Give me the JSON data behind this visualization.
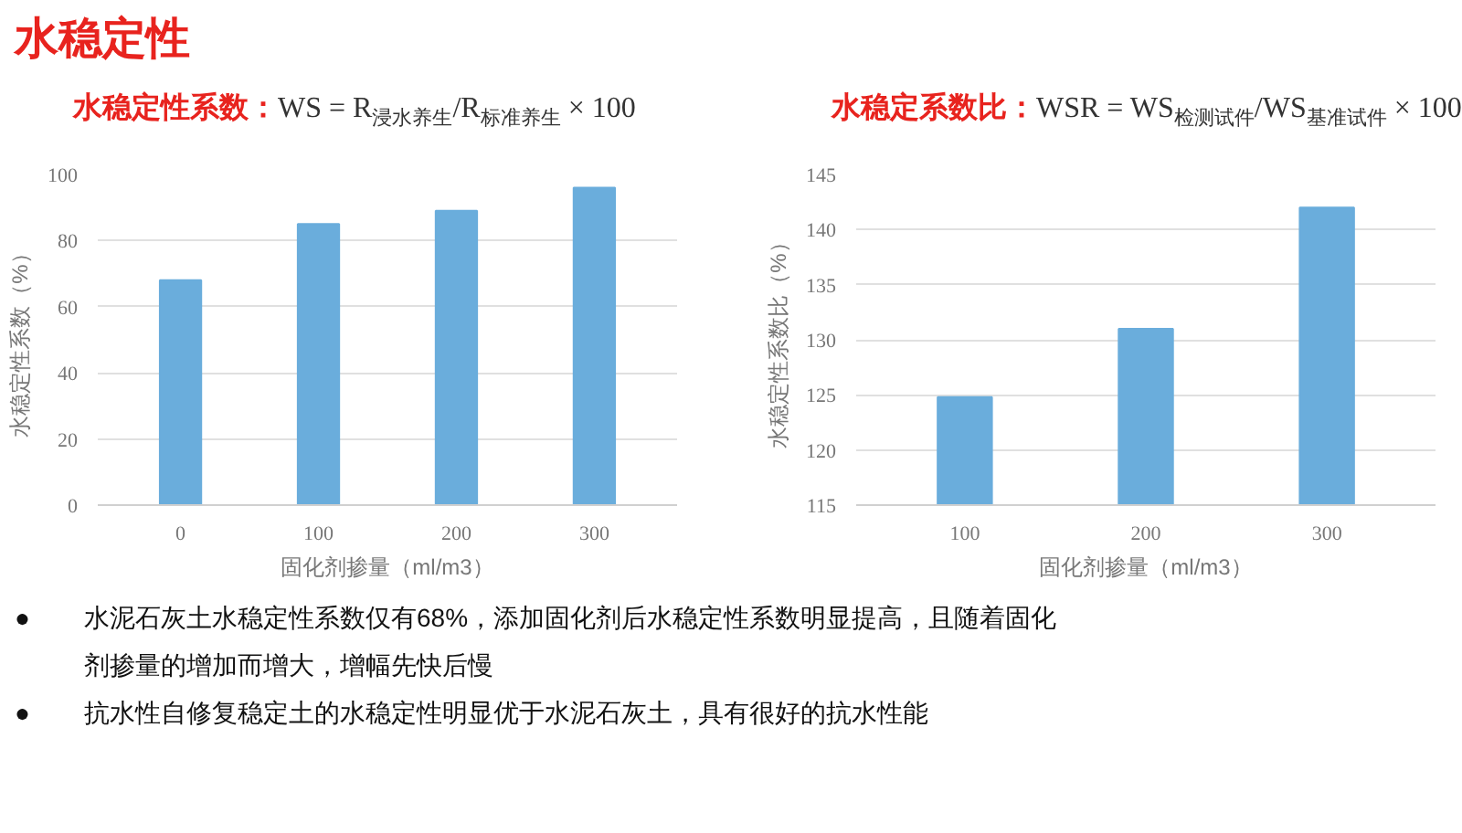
{
  "chart_data": [
    {
      "type": "other",
      "title": "水稳定性"
    },
    {
      "type": "bar",
      "title": "水稳定性系数：WS = R$_{浸水养生}$/R$_{标准养生}$ × 100",
      "xlabel": "固化剂掺量（ml/m3）",
      "ylabel": "水稳定性系数（%）",
      "categories": [
        "0",
        "100",
        "200",
        "300"
      ],
      "values": [
        68,
        85,
        89,
        96
      ],
      "color": "#6aaddc",
      "ylim": [
        0,
        100
      ],
      "yticks": [
        0,
        20,
        40,
        60,
        80,
        100
      ],
      "grid": "y"
    },
    {
      "type": "bar",
      "title": "水稳定系数比：WSR = WS$_{检测试件}$/WS$_{基准试件}$ × 100",
      "xlabel": "固化剂掺量（ml/m3）",
      "ylabel": "水稳定性系数比（%）",
      "categories": [
        "100",
        "200",
        "300"
      ],
      "values": [
        124.8,
        131,
        142
      ],
      "color": "#6aaddc",
      "ylim": [
        115,
        145
      ],
      "yticks": [
        115,
        120,
        125,
        130,
        135,
        140,
        145
      ],
      "grid": "y"
    },
    {
      "type": "other",
      "annotations": [
        "●水泥石灰土水稳定性系数仅有68%，添加固化剂后水稳定性系数明显提高，且随着固化剂掺量的增加而增大，增幅先快后慢",
        "●抗水性自修复稳定土的水稳定性明显优于水泥石灰土，具有很好的抗水性能"
      ]
    }
  ]
}
